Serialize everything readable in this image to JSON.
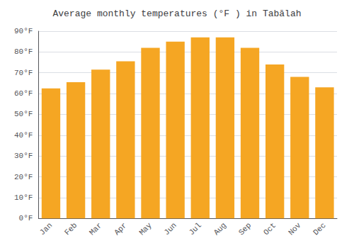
{
  "chart_data": {
    "type": "bar",
    "title": "Average monthly temperatures (°F ) in Tabālah",
    "categories": [
      "Jan",
      "Feb",
      "Mar",
      "Apr",
      "May",
      "Jun",
      "Jul",
      "Aug",
      "Sep",
      "Oct",
      "Nov",
      "Dec"
    ],
    "values": [
      62.5,
      65.5,
      71.5,
      75.5,
      82,
      85,
      87,
      87,
      82,
      74,
      68,
      63
    ],
    "color": "#F5A623",
    "ylim": [
      0,
      90
    ],
    "yticks": [
      {
        "value": 0,
        "label": "0°F"
      },
      {
        "value": 10,
        "label": "10°F"
      },
      {
        "value": 20,
        "label": "20°F"
      },
      {
        "value": 30,
        "label": "30°F"
      },
      {
        "value": 40,
        "label": "40°F"
      },
      {
        "value": 50,
        "label": "50°F"
      },
      {
        "value": 60,
        "label": "60°F"
      },
      {
        "value": 70,
        "label": "70°F"
      },
      {
        "value": 80,
        "label": "80°F"
      },
      {
        "value": 90,
        "label": "90°F"
      }
    ],
    "grid": true
  }
}
